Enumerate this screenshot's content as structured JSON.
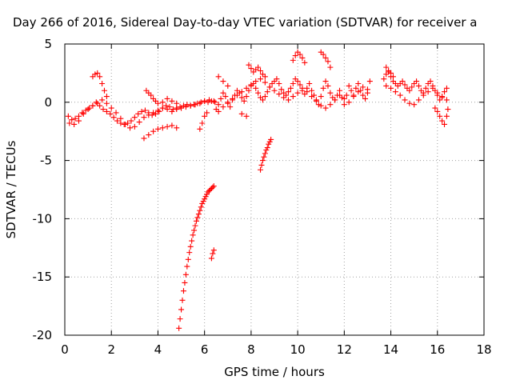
{
  "chart_data": {
    "type": "scatter",
    "title": "Day 266 of 2016, Sidereal Day-to-day VTEC variation (SDTVAR) for receiver a",
    "xlabel": "GPS time / hours",
    "ylabel": "SDTVAR / TECUs",
    "xlim": [
      0,
      18
    ],
    "ylim": [
      -20,
      5
    ],
    "xticks": [
      0,
      2,
      4,
      6,
      8,
      10,
      12,
      14,
      16,
      18
    ],
    "xtick_labels": [
      "0",
      "2",
      "4",
      "6",
      "8",
      "10",
      "12",
      "14",
      "16",
      "18"
    ],
    "yticks": [
      5,
      0,
      -5,
      -10,
      -15,
      -20
    ],
    "ytick_labels": [
      "5",
      "0",
      "-5",
      "-10",
      "-15",
      "-20"
    ],
    "grid": true,
    "marker": "+",
    "color": "#ff0000",
    "series": [
      {
        "x": [
          0.15,
          0.3,
          0.45,
          0.6,
          0.75,
          0.9,
          1.05,
          1.2,
          1.35,
          1.5,
          1.65,
          1.8,
          1.95,
          2.1,
          2.25,
          2.4,
          2.55,
          2.7,
          2.85,
          3.0,
          3.15,
          3.3,
          3.45,
          3.6,
          3.75,
          3.9,
          4.05,
          4.2,
          4.35,
          4.5,
          4.65,
          4.8,
          4.95,
          5.1,
          5.25,
          5.4,
          5.55,
          5.7,
          5.85,
          6.0,
          6.15,
          6.3,
          6.45,
          0.2,
          0.4,
          0.6,
          0.8,
          1.0,
          1.2,
          1.4,
          1.6,
          1.8,
          2.0,
          2.2,
          2.4,
          2.6,
          2.8,
          3.0,
          3.2,
          3.4,
          3.6,
          3.8,
          4.0,
          4.2,
          4.4,
          4.6,
          4.8,
          5.0,
          5.2,
          5.4,
          5.6,
          5.8,
          6.0,
          6.2,
          6.4,
          1.2,
          1.3,
          1.4,
          1.5,
          1.6,
          1.7,
          1.8,
          3.5,
          3.6,
          3.7,
          3.8,
          3.9,
          4.0,
          4.2,
          4.4,
          4.6,
          4.8,
          3.4,
          3.6,
          3.8,
          4.0,
          4.2,
          4.4,
          4.6,
          4.8,
          5.8,
          5.9,
          6.0,
          6.1
        ],
        "y": [
          -1.2,
          -1.5,
          -1.4,
          -1.2,
          -0.9,
          -0.7,
          -0.5,
          -0.3,
          0.0,
          -0.3,
          -0.6,
          -0.8,
          -1.0,
          -1.3,
          -1.6,
          -1.8,
          -1.9,
          -1.8,
          -1.6,
          -1.3,
          -1.0,
          -0.8,
          -0.7,
          -0.9,
          -1.1,
          -1.0,
          -0.8,
          -0.5,
          -0.3,
          -0.4,
          -0.6,
          -0.5,
          -0.4,
          -0.3,
          -0.2,
          -0.3,
          -0.2,
          -0.1,
          0.0,
          0.1,
          0.0,
          0.1,
          0.0,
          -1.8,
          -1.9,
          -1.6,
          -1.0,
          -0.6,
          -0.3,
          -0.1,
          0.2,
          -0.1,
          -0.5,
          -0.9,
          -1.4,
          -1.9,
          -2.2,
          -2.1,
          -1.7,
          -1.3,
          -1.1,
          -0.9,
          -0.7,
          -0.5,
          -0.6,
          -0.8,
          -0.6,
          -0.5,
          -0.4,
          -0.3,
          -0.2,
          -0.1,
          0.1,
          0.2,
          0.1,
          2.2,
          2.4,
          2.5,
          2.2,
          1.6,
          1.0,
          0.5,
          1.0,
          0.8,
          0.6,
          0.3,
          0.1,
          -0.1,
          0.0,
          0.3,
          0.1,
          -0.1,
          -3.1,
          -2.8,
          -2.5,
          -2.3,
          -2.2,
          -2.1,
          -2.0,
          -2.2,
          -2.3,
          -1.8,
          -1.2,
          -0.9
        ]
      },
      {
        "x": [
          4.9,
          4.95,
          5.0,
          5.05,
          5.1,
          5.15,
          5.2,
          5.25,
          5.3,
          5.35,
          5.4,
          5.45,
          5.5,
          5.55,
          5.6,
          5.65,
          5.7,
          5.75,
          5.8,
          5.85,
          5.9,
          5.95,
          6.0,
          6.05,
          6.1,
          6.15,
          6.2,
          6.25,
          6.3,
          6.35,
          6.4,
          6.3,
          6.35,
          6.4,
          8.4,
          8.45,
          8.5,
          8.55,
          8.6,
          8.65,
          8.7,
          8.75,
          8.8,
          8.85
        ],
        "y": [
          -19.4,
          -18.6,
          -17.8,
          -17.0,
          -16.2,
          -15.5,
          -14.8,
          -14.1,
          -13.5,
          -12.9,
          -12.4,
          -11.9,
          -11.4,
          -11.0,
          -10.6,
          -10.2,
          -9.9,
          -9.6,
          -9.3,
          -9.0,
          -8.7,
          -8.5,
          -8.3,
          -8.1,
          -7.9,
          -7.7,
          -7.6,
          -7.5,
          -7.4,
          -7.3,
          -7.2,
          -13.4,
          -13.0,
          -12.7,
          -5.8,
          -5.4,
          -5.0,
          -4.7,
          -4.4,
          -4.1,
          -3.9,
          -3.6,
          -3.4,
          -3.2
        ]
      },
      {
        "x": [
          6.5,
          6.6,
          6.7,
          6.8,
          6.9,
          7.0,
          7.1,
          7.2,
          7.3,
          7.4,
          7.5,
          7.6,
          7.7,
          7.8,
          7.9,
          8.0,
          8.1,
          8.2,
          8.3,
          8.4,
          8.5,
          8.6,
          8.7,
          8.8,
          8.9,
          9.0,
          9.1,
          9.2,
          9.3,
          9.4,
          9.5,
          9.6,
          9.7,
          9.8,
          9.9,
          10.0,
          10.1,
          10.2,
          10.3,
          10.4,
          10.5,
          10.6,
          10.7,
          10.8,
          10.9,
          11.0,
          11.1,
          11.2,
          11.3,
          11.4,
          11.5,
          11.6,
          11.7,
          11.8,
          11.9,
          12.0,
          12.1,
          12.2,
          12.3,
          12.4,
          12.5,
          12.6,
          12.7,
          12.8,
          12.9,
          13.0,
          13.1,
          6.6,
          6.8,
          7.0,
          7.2,
          7.4,
          7.6,
          7.8,
          8.0,
          8.2,
          8.4,
          8.6,
          8.8,
          9.0,
          9.2,
          9.4,
          9.6,
          9.8,
          10.0,
          10.2,
          10.4,
          10.6,
          10.8,
          11.0,
          11.2,
          11.4,
          11.6,
          11.8,
          12.0,
          12.2,
          12.4,
          12.6,
          12.8,
          13.0,
          7.9,
          8.0,
          8.1,
          8.2,
          8.3,
          8.4,
          8.5,
          8.6,
          9.8,
          9.9,
          10.0,
          10.1,
          10.2,
          10.3,
          11.0,
          11.1,
          11.2,
          11.3,
          11.4,
          6.6,
          6.8,
          7.0,
          7.6,
          7.8
        ],
        "y": [
          -0.6,
          -0.2,
          0.3,
          0.8,
          0.5,
          0.0,
          -0.4,
          0.2,
          0.6,
          1.0,
          0.8,
          0.4,
          0.1,
          0.5,
          1.0,
          1.4,
          1.6,
          1.2,
          0.8,
          0.4,
          0.2,
          0.5,
          0.9,
          1.3,
          1.6,
          1.8,
          2.0,
          1.6,
          1.1,
          0.8,
          0.6,
          0.9,
          1.2,
          1.6,
          2.0,
          1.8,
          1.5,
          1.0,
          0.7,
          1.2,
          1.6,
          1.0,
          0.6,
          0.2,
          -0.2,
          0.5,
          1.2,
          1.8,
          1.4,
          0.8,
          0.4,
          0.2,
          0.6,
          1.0,
          0.4,
          -0.2,
          0.6,
          1.4,
          1.0,
          0.6,
          1.2,
          1.6,
          1.0,
          0.6,
          0.3,
          0.8,
          1.8,
          -0.8,
          -0.4,
          -0.1,
          0.3,
          0.6,
          0.9,
          1.2,
          1.5,
          1.8,
          2.0,
          1.7,
          1.3,
          1.0,
          0.7,
          0.4,
          0.2,
          0.5,
          0.8,
          1.2,
          0.9,
          0.5,
          0.1,
          -0.3,
          -0.5,
          -0.2,
          0.2,
          0.6,
          0.3,
          0.0,
          0.5,
          0.9,
          1.3,
          1.1,
          3.2,
          2.9,
          2.6,
          2.8,
          3.0,
          2.7,
          2.4,
          2.2,
          3.6,
          4.0,
          4.3,
          4.1,
          3.8,
          3.4,
          4.3,
          4.1,
          3.8,
          3.5,
          3.0,
          2.2,
          1.8,
          1.4,
          -1.0,
          -1.2
        ]
      },
      {
        "x": [
          13.7,
          13.8,
          13.9,
          14.0,
          14.1,
          14.2,
          14.3,
          14.4,
          14.5,
          14.6,
          14.7,
          14.8,
          14.9,
          15.0,
          15.1,
          15.2,
          15.3,
          15.4,
          15.5,
          15.6,
          15.7,
          15.8,
          15.9,
          16.0,
          16.1,
          16.2,
          16.3,
          16.4,
          13.8,
          14.0,
          14.2,
          14.4,
          14.6,
          14.8,
          15.0,
          15.2,
          15.4,
          15.6,
          15.8,
          16.0,
          16.2,
          16.4,
          15.9,
          16.0,
          16.1,
          16.2,
          16.3,
          16.4,
          16.45,
          13.8,
          13.9,
          14.0,
          14.1
        ],
        "y": [
          2.0,
          2.4,
          2.6,
          2.2,
          1.8,
          1.6,
          1.4,
          1.6,
          1.8,
          1.5,
          1.2,
          1.0,
          1.3,
          1.6,
          1.8,
          1.4,
          1.0,
          0.8,
          1.2,
          1.6,
          1.8,
          1.4,
          1.0,
          0.6,
          0.2,
          0.5,
          0.9,
          1.2,
          1.4,
          1.2,
          0.9,
          0.6,
          0.2,
          -0.1,
          -0.2,
          0.2,
          0.6,
          0.9,
          1.2,
          0.8,
          0.4,
          0.2,
          -0.5,
          -0.8,
          -1.2,
          -1.6,
          -1.9,
          -1.2,
          -0.6,
          3.0,
          2.7,
          2.5,
          2.2
        ]
      }
    ]
  }
}
